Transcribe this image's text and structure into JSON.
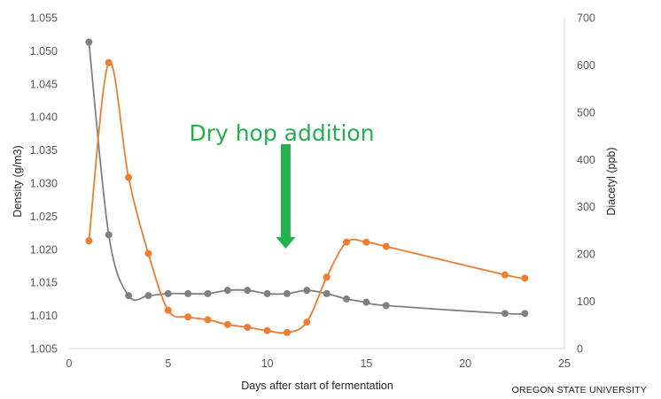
{
  "chart_data": {
    "type": "line",
    "x_axis": {
      "label": "Days after start of fermentation",
      "range": [
        0,
        25
      ],
      "ticks": [
        0,
        5,
        10,
        15,
        20,
        25
      ]
    },
    "y_axis_left": {
      "label": "Density (g/m3)",
      "range": [
        1.005,
        1.055
      ],
      "ticks": [
        "1.005",
        "1.010",
        "1.015",
        "1.020",
        "1.025",
        "1.030",
        "1.035",
        "1.040",
        "1.045",
        "1.050",
        "1.055"
      ]
    },
    "y_axis_right": {
      "label": "Diacetyl (ppb)",
      "range": [
        0,
        700
      ],
      "ticks": [
        0,
        100,
        200,
        300,
        400,
        500,
        600,
        700
      ]
    },
    "grid": false,
    "legend": "none",
    "series": [
      {
        "axis": "left",
        "color": "#808080",
        "smooth": true,
        "points": [
          [
            1,
            1.0513
          ],
          [
            2,
            1.0222
          ],
          [
            3,
            1.013
          ],
          [
            4,
            1.013
          ],
          [
            5,
            1.0133
          ],
          [
            6,
            1.0133
          ],
          [
            7,
            1.0133
          ],
          [
            8,
            1.0138
          ],
          [
            9,
            1.0138
          ],
          [
            10,
            1.0133
          ],
          [
            11,
            1.0133
          ],
          [
            12,
            1.0138
          ],
          [
            13,
            1.0133
          ],
          [
            14,
            1.0125
          ],
          [
            15,
            1.012
          ],
          [
            16,
            1.0115
          ],
          [
            22,
            1.0103
          ],
          [
            23,
            1.0103
          ]
        ]
      },
      {
        "axis": "right",
        "color": "#ed7d31",
        "smooth": true,
        "points": [
          [
            1,
            228
          ],
          [
            2,
            605
          ],
          [
            3,
            362
          ],
          [
            4,
            201
          ],
          [
            5,
            81
          ],
          [
            6,
            67
          ],
          [
            7,
            61
          ],
          [
            8,
            51
          ],
          [
            9,
            45
          ],
          [
            10,
            38
          ],
          [
            11,
            34
          ],
          [
            12,
            56
          ],
          [
            13,
            151
          ],
          [
            14,
            225
          ],
          [
            15,
            225
          ],
          [
            16,
            216
          ],
          [
            22,
            156
          ],
          [
            23,
            149
          ]
        ]
      }
    ],
    "annotation": {
      "text": "Dry hop addition",
      "x": 11,
      "color": "#22b14c"
    },
    "credit": "OREGON STATE UNIVERSITY"
  }
}
